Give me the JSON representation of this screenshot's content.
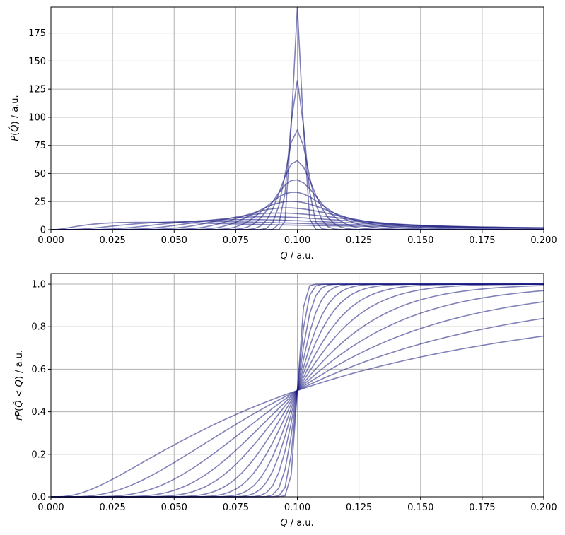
{
  "chart_data": [
    {
      "type": "line",
      "panel": "top",
      "title": "",
      "xlabel": "Q / a.u.",
      "ylabel": "P(Q̂) / a.u.",
      "xlim": [
        0,
        0.2
      ],
      "ylim": [
        0,
        198
      ],
      "xticks": [
        0.0,
        0.025,
        0.05,
        0.075,
        0.1,
        0.125,
        0.15,
        0.175,
        0.2
      ],
      "xtick_labels": [
        "0.000",
        "0.025",
        "0.050",
        "0.075",
        "0.100",
        "0.125",
        "0.150",
        "0.175",
        "0.200"
      ],
      "yticks": [
        0,
        25,
        50,
        75,
        100,
        125,
        150,
        175
      ],
      "ytick_labels": [
        "0",
        "25",
        "50",
        "75",
        "100",
        "125",
        "150",
        "175"
      ],
      "grid": true,
      "line_color": "#1a1a80",
      "series_description": "log-normal densities centered near Q=0.1 with increasing width",
      "sigmas": [
        0.02,
        0.03,
        0.045,
        0.065,
        0.09,
        0.12,
        0.16,
        0.21,
        0.28,
        0.37,
        0.5,
        0.7,
        1.0
      ],
      "median": 0.1
    },
    {
      "type": "line",
      "panel": "bottom",
      "title": "",
      "xlabel": "Q / a.u.",
      "ylabel": "rP(Q̂ < Q) / a.u.",
      "xlim": [
        0,
        0.2
      ],
      "ylim": [
        0,
        1.05
      ],
      "xticks": [
        0.0,
        0.025,
        0.05,
        0.075,
        0.1,
        0.125,
        0.15,
        0.175,
        0.2
      ],
      "xtick_labels": [
        "0.000",
        "0.025",
        "0.050",
        "0.075",
        "0.100",
        "0.125",
        "0.150",
        "0.175",
        "0.200"
      ],
      "yticks": [
        0.0,
        0.2,
        0.4,
        0.6,
        0.8,
        1.0
      ],
      "ytick_labels": [
        "0.0",
        "0.2",
        "0.4",
        "0.6",
        "0.8",
        "1.0"
      ],
      "grid": true,
      "line_color": "#1a1a80",
      "series_description": "cumulative distributions corresponding to the top panel",
      "sigmas": [
        0.02,
        0.03,
        0.045,
        0.065,
        0.09,
        0.12,
        0.16,
        0.21,
        0.28,
        0.37,
        0.5,
        0.7,
        1.0
      ],
      "median": 0.1
    }
  ]
}
